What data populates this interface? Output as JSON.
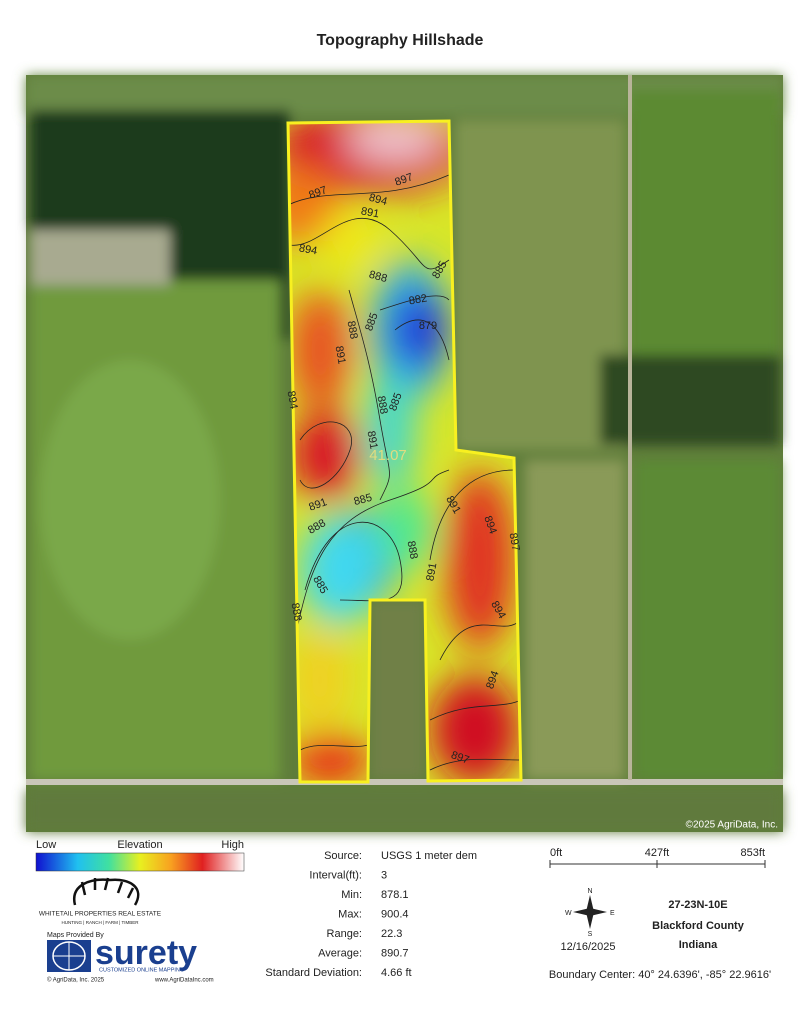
{
  "title": "Topography Hillshade",
  "map": {
    "acres": "41.07",
    "copyright": "©2025 AgriData, Inc.",
    "contour_labels": [
      "897",
      "894",
      "897",
      "891",
      "894",
      "888",
      "885",
      "882",
      "879",
      "888",
      "885",
      "891",
      "894",
      "888",
      "885",
      "891",
      "885",
      "891",
      "888",
      "885",
      "888",
      "888",
      "891",
      "891",
      "894",
      "897",
      "894",
      "894",
      "897"
    ]
  },
  "legend": {
    "low": "Low",
    "label": "Elevation",
    "high": "High"
  },
  "stats": {
    "rows": [
      [
        "Source:",
        "USGS 1 meter dem"
      ],
      [
        "Interval(ft):",
        "3"
      ],
      [
        "Min:",
        "878.1"
      ],
      [
        "Max:",
        "900.4"
      ],
      [
        "Range:",
        "22.3"
      ],
      [
        "Average:",
        "890.7"
      ],
      [
        "Standard Deviation:",
        "4.66 ft"
      ]
    ]
  },
  "scale": {
    "ticks": [
      "0ft",
      "427ft",
      "853ft"
    ]
  },
  "compass": {
    "n": "N",
    "s": "S",
    "e": "E",
    "w": "W"
  },
  "date": "12/16/2025",
  "location": {
    "section": "27-23N-10E",
    "county": "Blackford County",
    "state": "Indiana",
    "boundary_center": "Boundary Center: 40° 24.6396',  -85° 22.9616'"
  },
  "branding": {
    "company": "WHITETAIL PROPERTIES REAL ESTATE",
    "tagline": "HUNTING | RANCH | FARM | TIMBER",
    "provided": "Maps Provided By",
    "surety": "surety",
    "surety_tag": "CUSTOMIZED ONLINE MAPPING",
    "copyright": "© AgriData, Inc. 2025",
    "url": "www.AgriDataInc.com"
  }
}
